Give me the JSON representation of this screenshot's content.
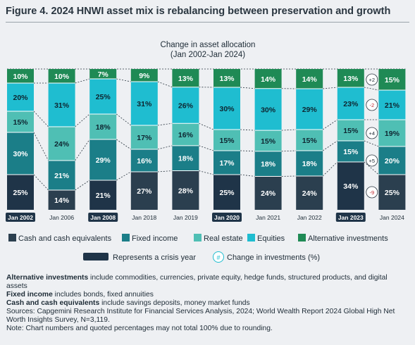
{
  "title": "Figure 4. 2024 HNWI asset mix is rebalancing between preservation and growth",
  "chart_data": {
    "type": "bar",
    "stacked": true,
    "title": "Change in asset allocation",
    "subtitle": "(Jan 2002-Jan 2024)",
    "categories": [
      "Jan 2002",
      "Jan 2006",
      "Jan 2008",
      "Jan 2018",
      "Jan 2019",
      "Jan 2020",
      "Jan 2021",
      "Jan 2022",
      "Jan 2023",
      "Jan 2024"
    ],
    "crisis_years": [
      "Jan 2002",
      "Jan 2008",
      "Jan 2020",
      "Jan 2023"
    ],
    "ylim": [
      0,
      100
    ],
    "series": [
      {
        "name": "Cash and cash equivalents",
        "color": "#2b3f4f",
        "crisis_color": "#1f3448",
        "values": [
          25,
          14,
          21,
          27,
          28,
          25,
          24,
          24,
          34,
          25
        ]
      },
      {
        "name": "Fixed income",
        "color": "#1b7e88",
        "values": [
          30,
          21,
          29,
          16,
          18,
          17,
          18,
          18,
          15,
          20
        ]
      },
      {
        "name": "Real estate",
        "color": "#4fbfb4",
        "values": [
          15,
          24,
          18,
          17,
          16,
          15,
          15,
          15,
          15,
          19
        ]
      },
      {
        "name": "Equities",
        "color": "#1fbdd0",
        "values": [
          20,
          31,
          25,
          31,
          26,
          30,
          30,
          29,
          23,
          21
        ]
      },
      {
        "name": "Alternative investments",
        "color": "#1f8a55",
        "values": [
          10,
          10,
          7,
          9,
          13,
          13,
          14,
          14,
          13,
          15
        ]
      }
    ],
    "changes": [
      "+2",
      "-2",
      "+4",
      "+5",
      "-9"
    ],
    "legend": {
      "crisis_label": "Represents a crisis year",
      "change_symbol": "#",
      "change_label": "Change in investments (%)"
    },
    "legend_placement": "bottom",
    "grid": false
  },
  "notes": [
    {
      "bold": "Alternative investments",
      "text": " include commodities, currencies, private equity, hedge funds, structured products, and digital assets"
    },
    {
      "bold": "Fixed income",
      "text": " includes bonds, fixed annuities"
    },
    {
      "bold": "Cash and cash equivalents",
      "text": " include savings deposits, money market funds"
    },
    {
      "bold": "",
      "text": "Sources: Capgemini Research Institute for Financial Services Analysis, 2024; World Wealth Report 2024 Global High Net Worth Insights Survey, N=3,119."
    },
    {
      "bold": "",
      "text": "Note: Chart numbers and quoted percentages may not total 100% due to rounding."
    }
  ]
}
